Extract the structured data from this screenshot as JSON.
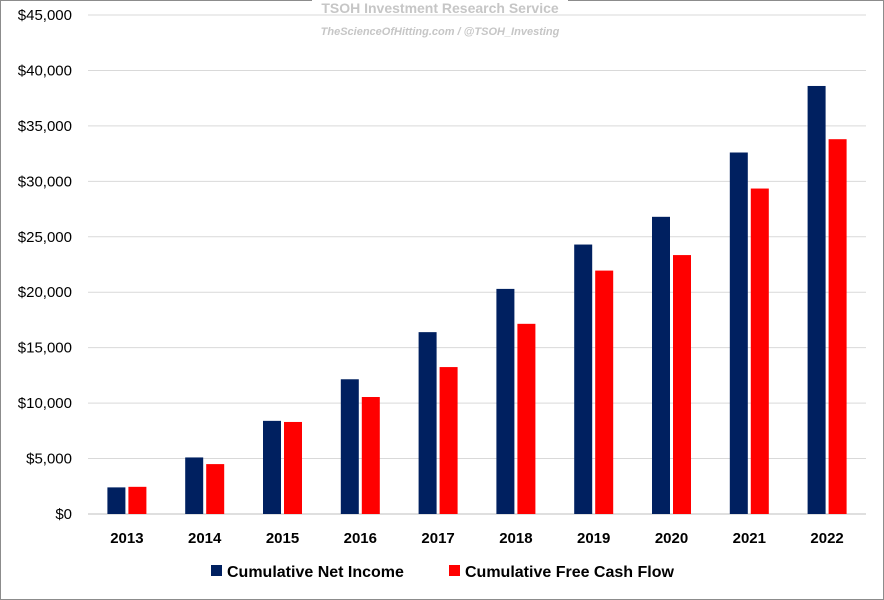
{
  "watermark": {
    "title": "TSOH Investment Research Service",
    "subtitle": "TheScienceOfHitting.com / @TSOH_Investing"
  },
  "chart_data": {
    "type": "bar",
    "categories": [
      "2013",
      "2014",
      "2015",
      "2016",
      "2017",
      "2018",
      "2019",
      "2020",
      "2021",
      "2022"
    ],
    "series": [
      {
        "name": "Cumulative Net Income",
        "color": "#002060",
        "values": [
          2400,
          5100,
          8400,
          12150,
          16400,
          20300,
          24300,
          26800,
          32600,
          38600
        ]
      },
      {
        "name": "Cumulative Free Cash Flow",
        "color": "#ff0000",
        "values": [
          2450,
          4500,
          8300,
          10550,
          13250,
          17150,
          21950,
          23350,
          29350,
          33800
        ]
      }
    ],
    "ylim": [
      0,
      45000
    ],
    "yticks": [
      "$0",
      "$5,000",
      "$10,000",
      "$15,000",
      "$20,000",
      "$25,000",
      "$30,000",
      "$35,000",
      "$40,000",
      "$45,000"
    ],
    "grid": true,
    "legend": "bottom"
  }
}
